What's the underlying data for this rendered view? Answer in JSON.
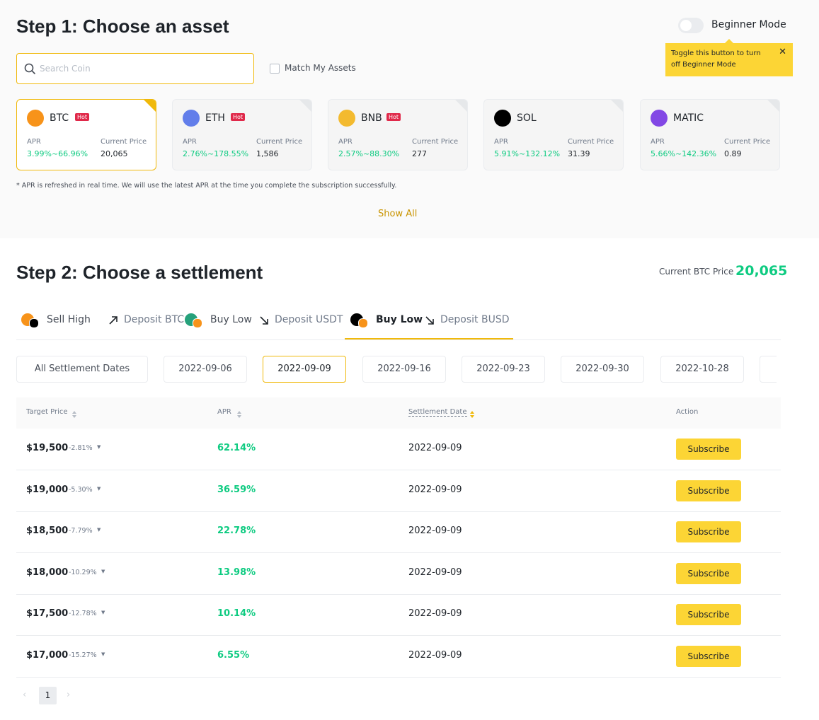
{
  "step1": {
    "title": "Step 1: Choose an asset",
    "toggle_label": "Beginner Mode",
    "tooltip": "Toggle this button to turn off Beginner Mode",
    "search_placeholder": "Search Coin",
    "match_label": "Match My Assets",
    "assets": [
      {
        "symbol": "BTC",
        "badge": "Hot",
        "apr_label": "APR",
        "apr": "3.99%~66.96%",
        "price_label": "Current Price",
        "price": "20,065"
      },
      {
        "symbol": "ETH",
        "badge": "Hot",
        "apr_label": "APR",
        "apr": "2.76%~178.55%",
        "price_label": "Current Price",
        "price": "1,586"
      },
      {
        "symbol": "BNB",
        "badge": "Hot",
        "apr_label": "APR",
        "apr": "2.57%~88.30%",
        "price_label": "Current Price",
        "price": "277"
      },
      {
        "symbol": "SOL",
        "apr_label": "APR",
        "apr": "5.91%~132.12%",
        "price_label": "Current Price",
        "price": "31.39"
      },
      {
        "symbol": "MATIC",
        "apr_label": "APR",
        "apr": "5.66%~142.36%",
        "price_label": "Current Price",
        "price": "0.89"
      }
    ],
    "note": "* APR is refreshed in real time. We will use the latest APR at the time you complete the subscription successfully.",
    "show_all": "Show All"
  },
  "step2": {
    "title": "Step 2: Choose a settlement",
    "price_label": "Current BTC Price",
    "price": "20,065",
    "tabs": [
      {
        "action": "Sell High",
        "deposit": "Deposit BTC"
      },
      {
        "action": "Buy Low",
        "deposit": "Deposit USDT"
      },
      {
        "action": "Buy Low",
        "deposit": "Deposit BUSD"
      }
    ],
    "dates": [
      "All Settlement Dates",
      "2022-09-06",
      "2022-09-09",
      "2022-09-16",
      "2022-09-23",
      "2022-09-30",
      "2022-10-28"
    ],
    "table": {
      "headers": [
        "Target Price",
        "APR",
        "Settlement Date",
        "Action"
      ],
      "rows": [
        [
          "$19,500",
          "-2.81%",
          "62.14%",
          "2022-09-09",
          "Subscribe"
        ],
        [
          "$19,000",
          "-5.30%",
          "36.59%",
          "2022-09-09",
          "Subscribe"
        ],
        [
          "$18,500",
          "-7.79%",
          "22.78%",
          "2022-09-09",
          "Subscribe"
        ],
        [
          "$18,000",
          "-10.29%",
          "13.98%",
          "2022-09-09",
          "Subscribe"
        ],
        [
          "$17,500",
          "-12.78%",
          "10.14%",
          "2022-09-09",
          "Subscribe"
        ],
        [
          "$17,000",
          "-15.27%",
          "6.55%",
          "2022-09-09",
          "Subscribe"
        ]
      ]
    },
    "pagination": {
      "page": "1"
    }
  }
}
